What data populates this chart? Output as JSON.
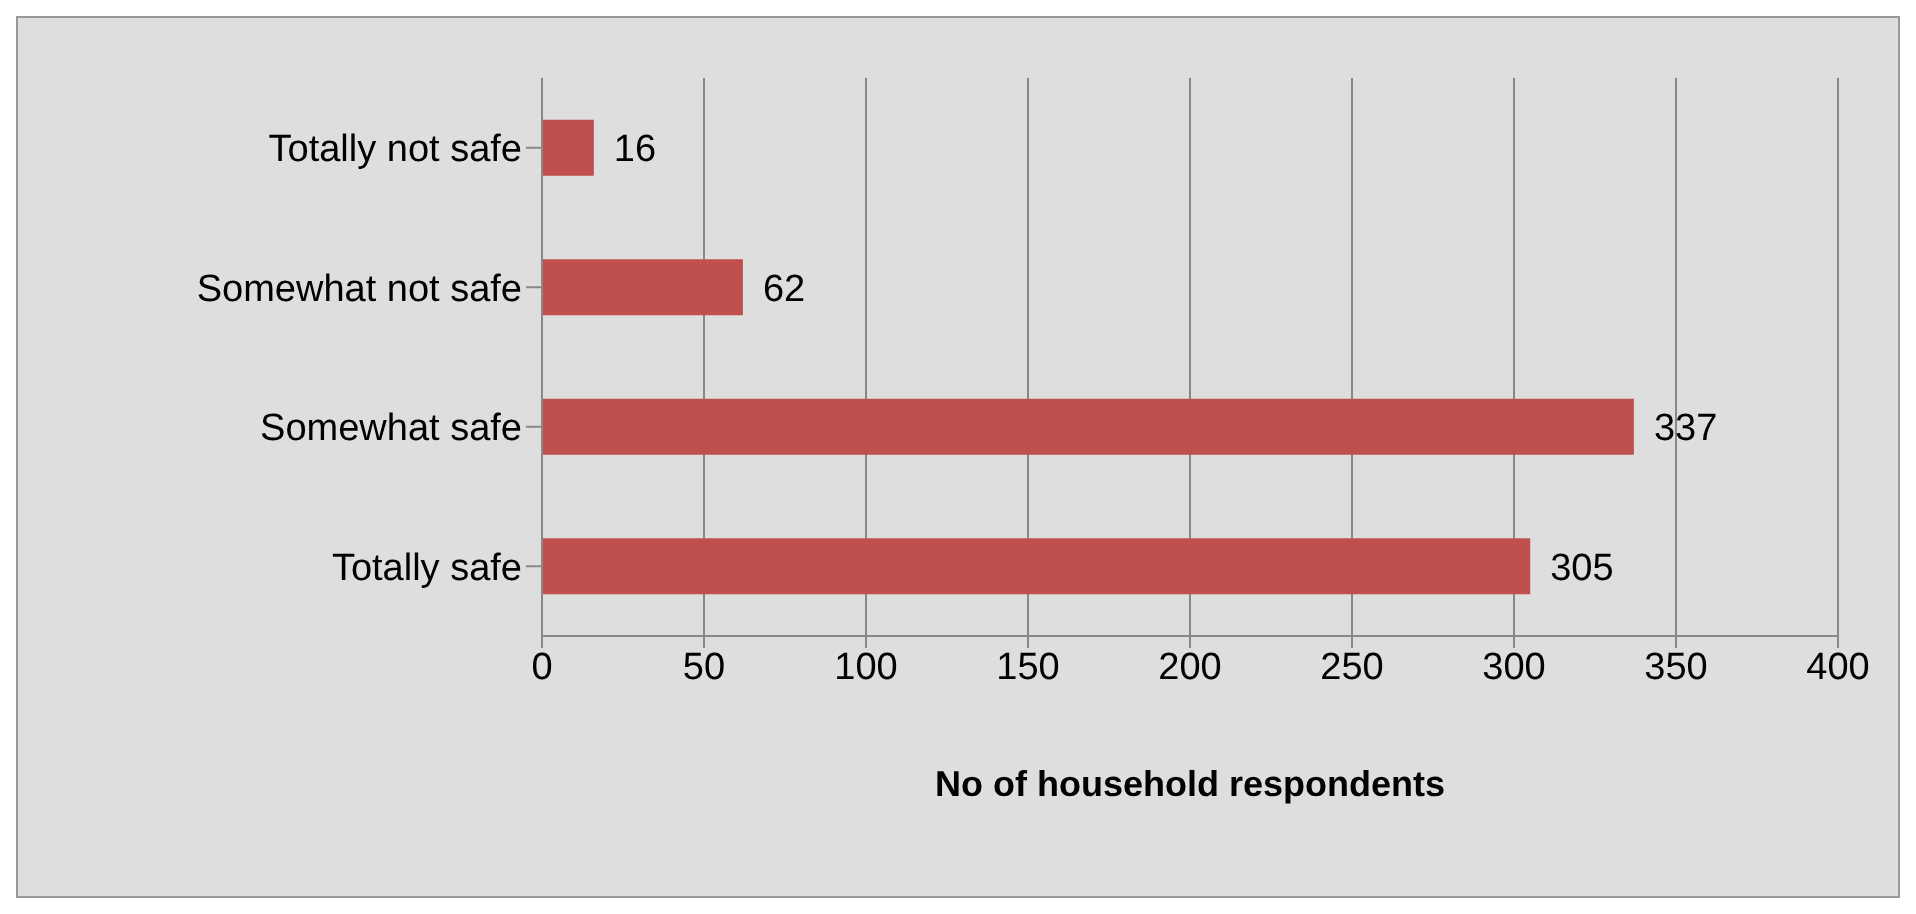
{
  "chart_data": {
    "type": "bar",
    "orientation": "horizontal",
    "xlabel": "No of household respondents",
    "categories": [
      "Totally not safe",
      "Somewhat not safe",
      "Somewhat safe",
      "Totally safe"
    ],
    "values": [
      16,
      62,
      337,
      305
    ],
    "color": "#c0504d",
    "xlim": [
      0,
      400
    ],
    "xticks": [
      0,
      50,
      100,
      150,
      200,
      250,
      300,
      350,
      400
    ],
    "grid": "x",
    "data_labels": true
  }
}
